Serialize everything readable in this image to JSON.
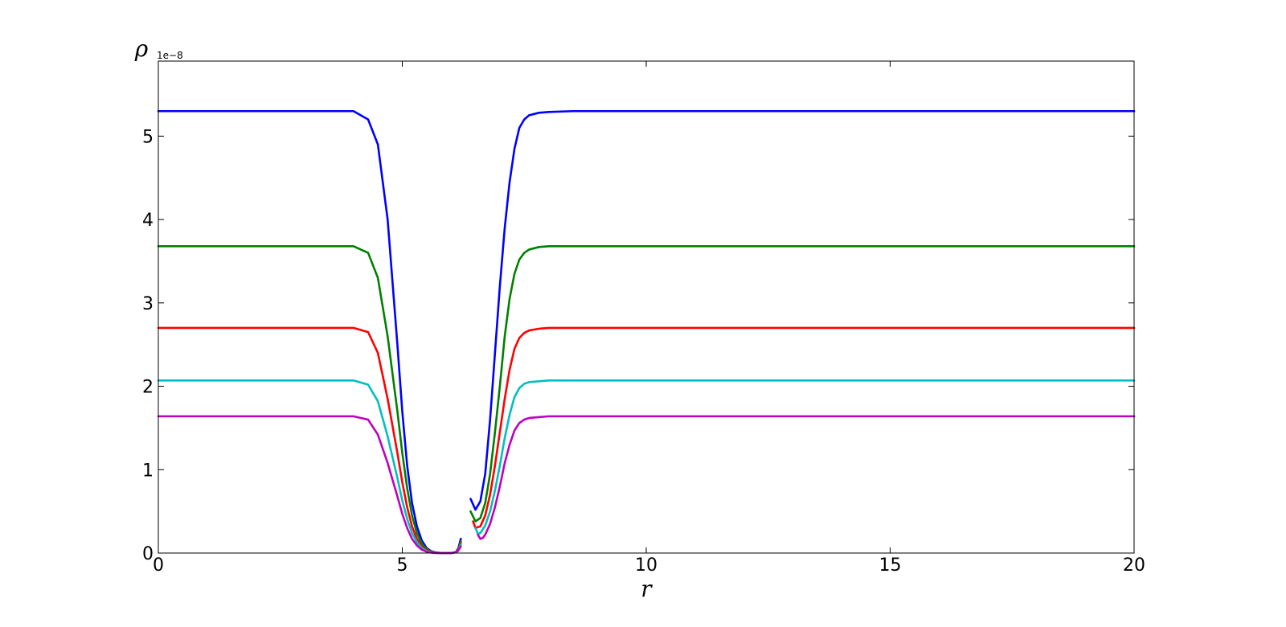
{
  "chart_data": {
    "type": "line",
    "title": "",
    "xlabel": "r",
    "ylabel": "ρ",
    "y_offset_label": "1e−8",
    "xlim": [
      0,
      20
    ],
    "ylim": [
      0,
      5.9
    ],
    "xticks": [
      0,
      5,
      10,
      15,
      20
    ],
    "xtick_labels": [
      "0",
      "5",
      "10",
      "15",
      "20"
    ],
    "yticks": [
      0,
      1,
      2,
      3,
      4,
      5
    ],
    "ytick_labels": [
      "0",
      "1",
      "2",
      "3",
      "4",
      "5"
    ],
    "grid": false,
    "legend": "none",
    "series": [
      {
        "color": "#0000ff",
        "left_branch": {
          "x": [
            0,
            1,
            2,
            3,
            4,
            4.3,
            4.5,
            4.7,
            4.9,
            5.0,
            5.1,
            5.2,
            5.3,
            5.4,
            5.5,
            5.6,
            5.7,
            5.8,
            5.9,
            6.0,
            6.1,
            6.15,
            6.2
          ],
          "y": [
            5.3,
            5.3,
            5.3,
            5.3,
            5.3,
            5.2,
            4.9,
            4.0,
            2.5,
            1.7,
            1.05,
            0.6,
            0.32,
            0.15,
            0.06,
            0.02,
            0.005,
            0.001,
            0.0,
            0.0,
            0.01,
            0.06,
            0.17
          ]
        },
        "right_branch": {
          "x": [
            6.4,
            6.5,
            6.6,
            6.7,
            6.8,
            6.9,
            7.0,
            7.1,
            7.2,
            7.3,
            7.4,
            7.5,
            7.6,
            7.8,
            8.0,
            8.5,
            10,
            15,
            20
          ],
          "y": [
            0.65,
            0.52,
            0.62,
            0.95,
            1.6,
            2.4,
            3.2,
            3.9,
            4.45,
            4.85,
            5.1,
            5.2,
            5.25,
            5.28,
            5.29,
            5.3,
            5.3,
            5.3,
            5.3
          ]
        }
      },
      {
        "color": "#008000",
        "left_branch": {
          "x": [
            0,
            1,
            2,
            3,
            4,
            4.3,
            4.5,
            4.7,
            4.9,
            5.0,
            5.1,
            5.2,
            5.3,
            5.4,
            5.5,
            5.6,
            5.7,
            5.8,
            5.9,
            6.0,
            6.1,
            6.15,
            6.2
          ],
          "y": [
            3.68,
            3.68,
            3.68,
            3.68,
            3.68,
            3.6,
            3.3,
            2.6,
            1.7,
            1.2,
            0.78,
            0.45,
            0.24,
            0.11,
            0.05,
            0.015,
            0.004,
            0.001,
            0.0,
            0.0,
            0.01,
            0.05,
            0.14
          ]
        },
        "right_branch": {
          "x": [
            6.4,
            6.5,
            6.6,
            6.7,
            6.8,
            6.9,
            7.0,
            7.1,
            7.2,
            7.3,
            7.4,
            7.5,
            7.6,
            7.8,
            8.0,
            8.5,
            10,
            15,
            20
          ],
          "y": [
            0.5,
            0.38,
            0.42,
            0.6,
            0.95,
            1.45,
            2.0,
            2.6,
            3.05,
            3.35,
            3.52,
            3.6,
            3.64,
            3.67,
            3.68,
            3.68,
            3.68,
            3.68,
            3.68
          ]
        }
      },
      {
        "color": "#ff0000",
        "left_branch": {
          "x": [
            0,
            1,
            2,
            3,
            4,
            4.3,
            4.5,
            4.7,
            4.9,
            5.0,
            5.1,
            5.2,
            5.3,
            5.4,
            5.5,
            5.6,
            5.7,
            5.8,
            5.9,
            6.0,
            6.1,
            6.15,
            6.2
          ],
          "y": [
            2.7,
            2.7,
            2.7,
            2.7,
            2.7,
            2.65,
            2.4,
            1.85,
            1.2,
            0.85,
            0.55,
            0.32,
            0.17,
            0.08,
            0.035,
            0.012,
            0.003,
            0.0,
            0.0,
            0.0,
            0.01,
            0.04,
            0.12
          ]
        },
        "right_branch": {
          "x": [
            6.45,
            6.5,
            6.6,
            6.7,
            6.8,
            6.9,
            7.0,
            7.1,
            7.2,
            7.3,
            7.4,
            7.5,
            7.6,
            7.8,
            8.0,
            8.5,
            10,
            15,
            20
          ],
          "y": [
            0.38,
            0.3,
            0.32,
            0.45,
            0.7,
            1.05,
            1.45,
            1.85,
            2.2,
            2.45,
            2.58,
            2.64,
            2.67,
            2.69,
            2.7,
            2.7,
            2.7,
            2.7,
            2.7
          ]
        }
      },
      {
        "color": "#00bfbf",
        "left_branch": {
          "x": [
            0,
            1,
            2,
            3,
            4,
            4.3,
            4.5,
            4.7,
            4.9,
            5.0,
            5.1,
            5.2,
            5.3,
            5.4,
            5.5,
            5.6,
            5.7,
            5.8,
            5.9,
            6.0,
            6.1,
            6.15,
            6.2
          ],
          "y": [
            2.07,
            2.07,
            2.07,
            2.07,
            2.07,
            2.02,
            1.82,
            1.4,
            0.9,
            0.63,
            0.41,
            0.24,
            0.13,
            0.06,
            0.025,
            0.008,
            0.002,
            0.0,
            0.0,
            0.0,
            0.01,
            0.03,
            0.1
          ]
        },
        "right_branch": {
          "x": [
            6.5,
            6.55,
            6.6,
            6.7,
            6.8,
            6.9,
            7.0,
            7.1,
            7.2,
            7.3,
            7.4,
            7.5,
            7.6,
            7.8,
            8.0,
            8.5,
            10,
            15,
            20
          ],
          "y": [
            0.3,
            0.23,
            0.24,
            0.33,
            0.5,
            0.75,
            1.05,
            1.38,
            1.66,
            1.87,
            1.98,
            2.03,
            2.05,
            2.06,
            2.07,
            2.07,
            2.07,
            2.07,
            2.07
          ]
        }
      },
      {
        "color": "#bf00bf",
        "left_branch": {
          "x": [
            0,
            1,
            2,
            3,
            4,
            4.3,
            4.5,
            4.7,
            4.9,
            5.0,
            5.1,
            5.2,
            5.3,
            5.4,
            5.5,
            5.6,
            5.7,
            5.8,
            5.9,
            6.0,
            6.1,
            6.15,
            6.2
          ],
          "y": [
            1.64,
            1.64,
            1.64,
            1.64,
            1.64,
            1.6,
            1.42,
            1.08,
            0.68,
            0.47,
            0.3,
            0.17,
            0.09,
            0.04,
            0.016,
            0.005,
            0.001,
            0.0,
            0.0,
            0.0,
            0.01,
            0.03,
            0.08
          ]
        },
        "right_branch": {
          "x": [
            6.55,
            6.6,
            6.65,
            6.7,
            6.8,
            6.9,
            7.0,
            7.1,
            7.2,
            7.3,
            7.4,
            7.5,
            7.6,
            7.8,
            8.0,
            8.5,
            10,
            15,
            20
          ],
          "y": [
            0.22,
            0.17,
            0.18,
            0.22,
            0.35,
            0.55,
            0.8,
            1.08,
            1.3,
            1.47,
            1.56,
            1.6,
            1.62,
            1.63,
            1.64,
            1.64,
            1.64,
            1.64,
            1.64
          ]
        }
      }
    ]
  }
}
